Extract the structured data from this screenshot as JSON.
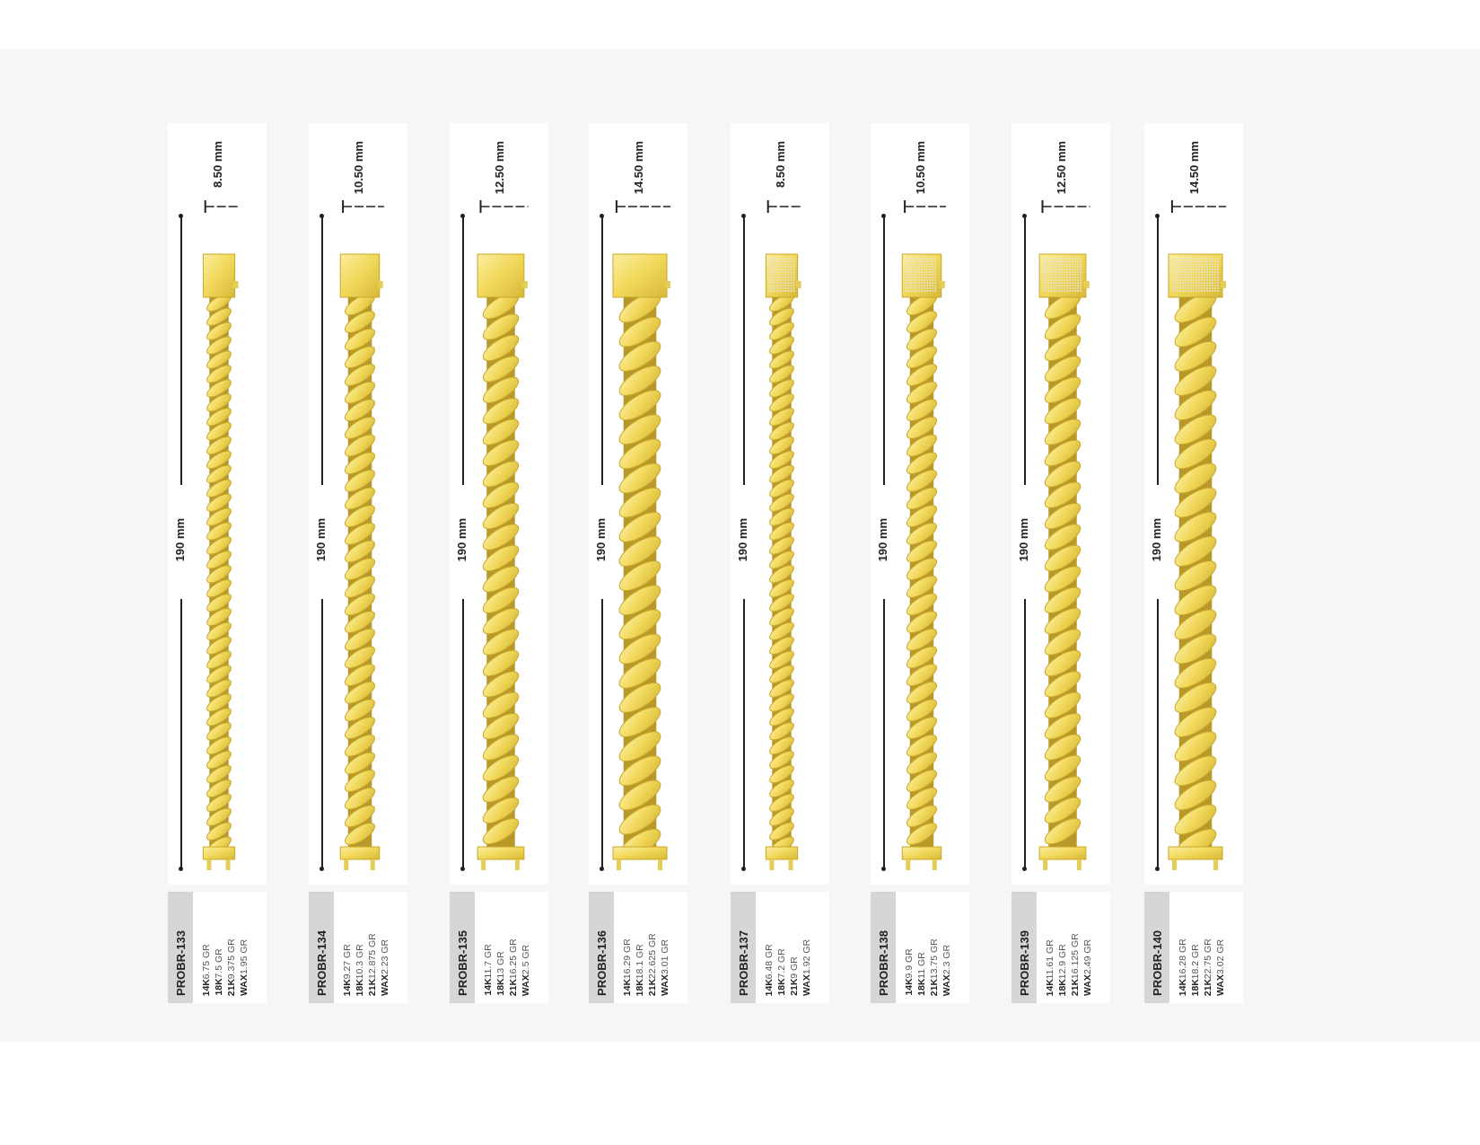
{
  "length_label": "190 mm",
  "colors": {
    "gold": "#f3dc62",
    "gold_dark": "#c9a82a",
    "background": "#f6f6f6",
    "strip": "#d6d6d6"
  },
  "products": [
    {
      "code": "PROBR-133",
      "width": "8.50 mm",
      "width_mm": 8.5,
      "pave": false,
      "weights": [
        {
          "k": "14K",
          "v": "6.75 GR"
        },
        {
          "k": "18K",
          "v": "7.5 GR"
        },
        {
          "k": "21K",
          "v": "9.375 GR"
        },
        {
          "k": "WAX",
          "v": "1.95 GR"
        }
      ]
    },
    {
      "code": "PROBR-134",
      "width": "10.50 mm",
      "width_mm": 10.5,
      "pave": false,
      "weights": [
        {
          "k": "14K",
          "v": "9.27 GR"
        },
        {
          "k": "18K",
          "v": "10.3 GR"
        },
        {
          "k": "21K",
          "v": "12.875 GR"
        },
        {
          "k": "WAX",
          "v": "2.23 GR"
        }
      ]
    },
    {
      "code": "PROBR-135",
      "width": "12.50 mm",
      "width_mm": 12.5,
      "pave": false,
      "weights": [
        {
          "k": "14K",
          "v": "11.7 GR"
        },
        {
          "k": "18K",
          "v": "13 GR"
        },
        {
          "k": "21K",
          "v": "16.25 GR"
        },
        {
          "k": "WAX",
          "v": "2.5 GR"
        }
      ]
    },
    {
      "code": "PROBR-136",
      "width": "14.50 mm",
      "width_mm": 14.5,
      "pave": false,
      "weights": [
        {
          "k": "14K",
          "v": "16.29 GR"
        },
        {
          "k": "18K",
          "v": "18.1 GR"
        },
        {
          "k": "21K",
          "v": "22.625 GR"
        },
        {
          "k": "WAX",
          "v": "3.01 GR"
        }
      ]
    },
    {
      "code": "PROBR-137",
      "width": "8.50 mm",
      "width_mm": 8.5,
      "pave": true,
      "weights": [
        {
          "k": "14K",
          "v": "6.48 GR"
        },
        {
          "k": "18K",
          "v": "7.2 GR"
        },
        {
          "k": "21K",
          "v": "9 GR"
        },
        {
          "k": "WAX",
          "v": "1.92 GR"
        }
      ]
    },
    {
      "code": "PROBR-138",
      "width": "10.50 mm",
      "width_mm": 10.5,
      "pave": true,
      "weights": [
        {
          "k": "14K",
          "v": "9.9 GR"
        },
        {
          "k": "18K",
          "v": "11 GR"
        },
        {
          "k": "21K",
          "v": "13.75 GR"
        },
        {
          "k": "WAX",
          "v": "2.3 GR"
        }
      ]
    },
    {
      "code": "PROBR-139",
      "width": "12.50 mm",
      "width_mm": 12.5,
      "pave": true,
      "weights": [
        {
          "k": "14K",
          "v": "11.61 GR"
        },
        {
          "k": "18K",
          "v": "12.9 GR"
        },
        {
          "k": "21K",
          "v": "16.125 GR"
        },
        {
          "k": "WAX",
          "v": "2.49 GR"
        }
      ]
    },
    {
      "code": "PROBR-140",
      "width": "14.50 mm",
      "width_mm": 14.5,
      "pave": true,
      "weights": [
        {
          "k": "14K",
          "v": "16.28 GR"
        },
        {
          "k": "18K",
          "v": "18.2 GR"
        },
        {
          "k": "21K",
          "v": "22.75 GR"
        },
        {
          "k": "WAX",
          "v": "3.02 GR"
        }
      ]
    }
  ]
}
